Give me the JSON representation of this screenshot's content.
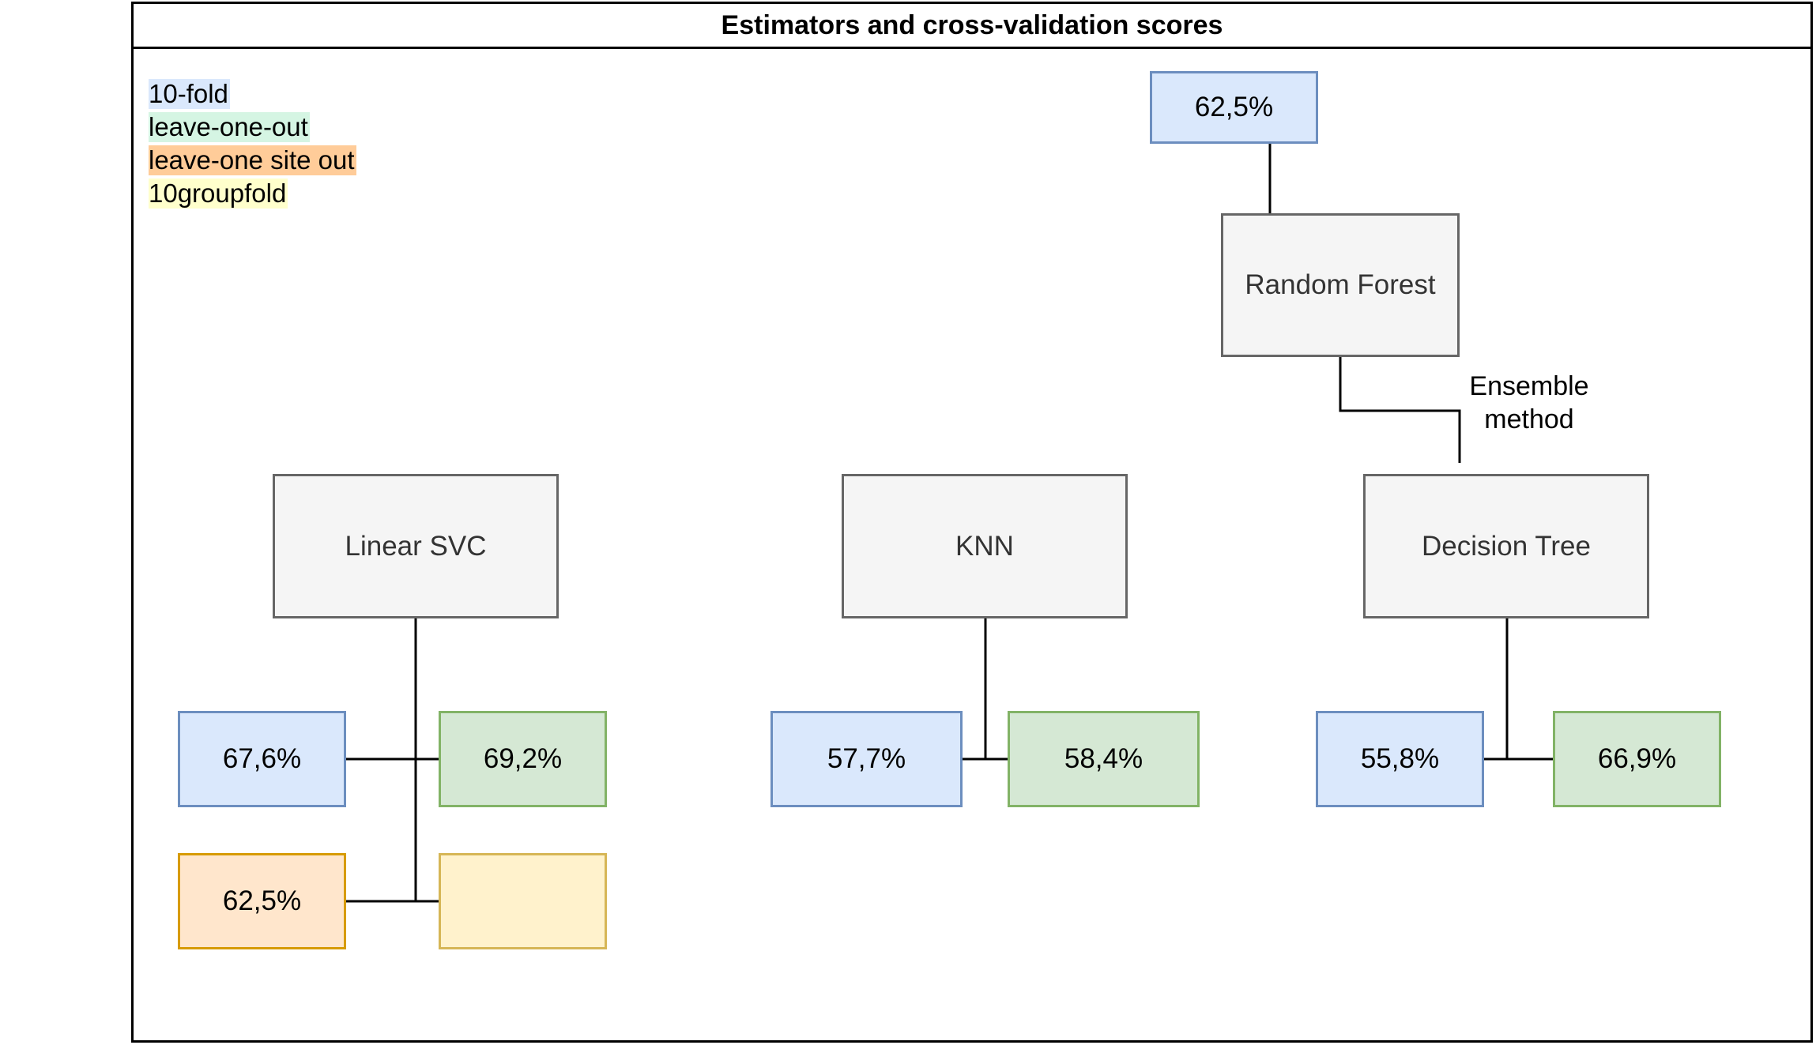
{
  "title": "Estimators and cross-validation scores",
  "legend": [
    {
      "label": "10-fold",
      "color": "#dae8fc"
    },
    {
      "label": "leave-one-out",
      "color": "#d5f5e3"
    },
    {
      "label": "leave-one site out",
      "color": "#ffcc99"
    },
    {
      "label": "10groupfold",
      "color": "#ffffcc"
    }
  ],
  "estimators": {
    "random_forest": {
      "label": "Random Forest",
      "ten_fold": "62,5%"
    },
    "linear_svc": {
      "label": "Linear SVC",
      "ten_fold": "67,6%",
      "leave_one_out": "69,2%",
      "leave_one_site_out": "62,5%",
      "ten_group_fold": ""
    },
    "knn": {
      "label": "KNN",
      "ten_fold": "57,7%",
      "leave_one_out": "58,4%"
    },
    "decision_tree": {
      "label": "Decision Tree",
      "ten_fold": "55,8%",
      "leave_one_out": "66,9%"
    }
  },
  "edge_label": "Ensemble\nmethod"
}
